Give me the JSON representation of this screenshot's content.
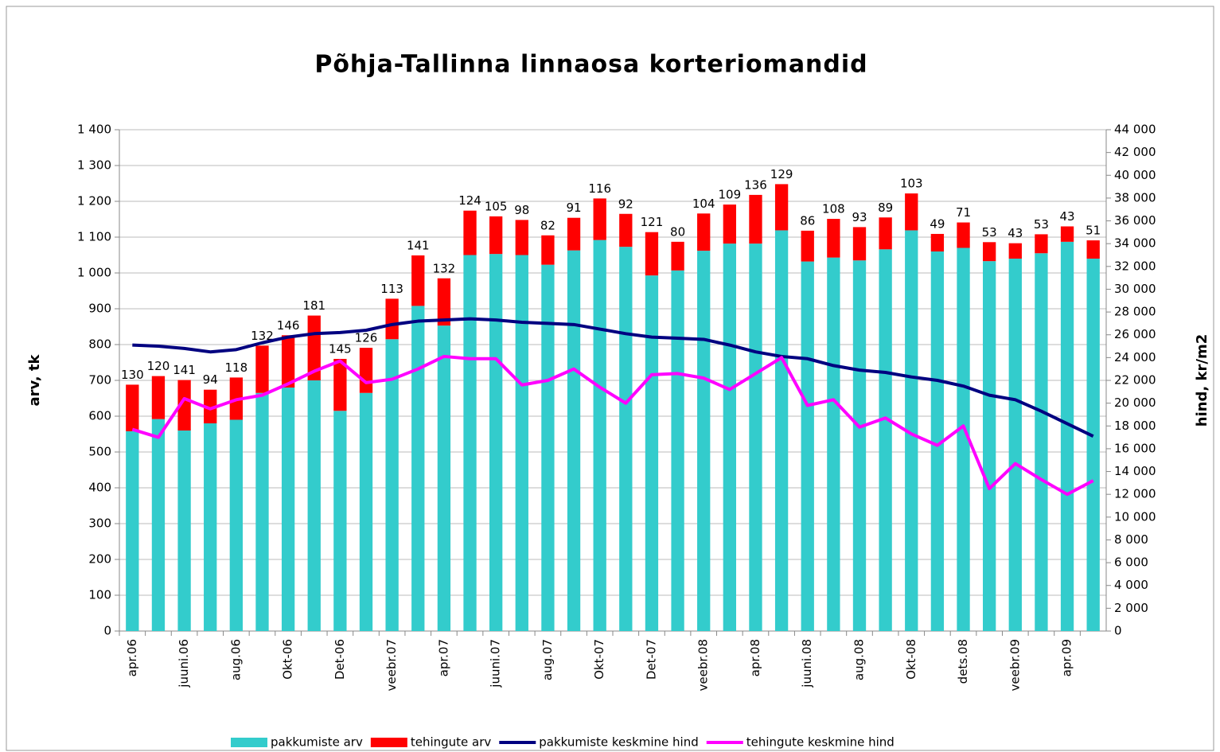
{
  "chart_data": {
    "type": "bar",
    "stacked": true,
    "title": "Põhja-Tallinna linnaosa korteriomandid",
    "ylabel": "arv, tk",
    "y2label": "hind, kr/m2",
    "categories": [
      "apr.06",
      null,
      "juuni.06",
      null,
      "aug.06",
      null,
      "Okt-06",
      null,
      "Det-06",
      null,
      "veebr.07",
      null,
      "apr.07",
      null,
      "juuni.07",
      null,
      "aug.07",
      null,
      "Okt-07",
      null,
      "Det-07",
      null,
      "veebr.08",
      null,
      "apr.08",
      null,
      "juuni.08",
      null,
      "aug.08",
      null,
      "Okt-08",
      null,
      "dets.08",
      null,
      "veebr.09",
      null,
      "apr.09",
      null
    ],
    "series": [
      {
        "name": "pakkumiste arv",
        "type": "bar",
        "color": "#33cccc",
        "values": [
          558,
          592,
          560,
          580,
          590,
          665,
          680,
          700,
          615,
          665,
          815,
          908,
          853,
          1050,
          1053,
          1050,
          1023,
          1063,
          1092,
          1073,
          993,
          1007,
          1062,
          1082,
          1082,
          1119,
          1032,
          1043,
          1035,
          1066,
          1119,
          1060,
          1070,
          1033,
          1040,
          1055,
          1087,
          1040
        ]
      },
      {
        "name": "tehingute arv",
        "type": "bar",
        "color": "#ff0000",
        "labels": true,
        "values": [
          130,
          120,
          141,
          94,
          118,
          132,
          146,
          181,
          145,
          126,
          113,
          141,
          132,
          124,
          105,
          98,
          82,
          91,
          116,
          92,
          121,
          80,
          104,
          109,
          136,
          129,
          86,
          108,
          93,
          89,
          103,
          49,
          71,
          53,
          43,
          53,
          43,
          51
        ]
      },
      {
        "name": "pakkumiste keskmine hind",
        "type": "line",
        "axis": "y2",
        "color": "#000080",
        "values": [
          25100,
          25000,
          24800,
          24500,
          24700,
          25300,
          25800,
          26100,
          26200,
          26400,
          26900,
          27200,
          27300,
          27400,
          27300,
          27100,
          27000,
          26900,
          26500,
          26100,
          25800,
          25700,
          25600,
          25100,
          24500,
          24100,
          23900,
          23300,
          22900,
          22700,
          22300,
          22000,
          21500,
          20700,
          20300,
          19300,
          18200,
          17100
        ]
      },
      {
        "name": "tehingute keskmine hind",
        "type": "line",
        "axis": "y2",
        "color": "#ff00ff",
        "values": [
          17700,
          17000,
          20400,
          19500,
          20300,
          20700,
          21700,
          22800,
          23700,
          21800,
          22100,
          23000,
          24100,
          23900,
          23900,
          21600,
          22000,
          23000,
          21400,
          20000,
          22500,
          22600,
          22200,
          21200,
          22600,
          24000,
          19800,
          20300,
          17900,
          18700,
          17300,
          16300,
          18000,
          12500,
          14700,
          13300,
          12000,
          13200
        ]
      }
    ],
    "ylim": [
      0,
      1400
    ],
    "yticks": [
      0,
      100,
      200,
      300,
      400,
      500,
      600,
      700,
      800,
      900,
      {
        "value": 1000,
        "label": "1 000"
      },
      {
        "value": 1100,
        "label": "1 100"
      },
      {
        "value": 1200,
        "label": "1 200"
      },
      {
        "value": 1300,
        "label": "1 300"
      },
      {
        "value": 1400,
        "label": "1 400"
      }
    ],
    "y2lim": [
      0,
      44000
    ],
    "y2ticks": [
      0,
      {
        "value": 2000,
        "label": "2 000"
      },
      {
        "value": 4000,
        "label": "4 000"
      },
      {
        "value": 6000,
        "label": "6 000"
      },
      {
        "value": 8000,
        "label": "8 000"
      },
      {
        "value": 10000,
        "label": "10 000"
      },
      {
        "value": 12000,
        "label": "12 000"
      },
      {
        "value": 14000,
        "label": "14 000"
      },
      {
        "value": 16000,
        "label": "16 000"
      },
      {
        "value": 18000,
        "label": "18 000"
      },
      {
        "value": 20000,
        "label": "20 000"
      },
      {
        "value": 22000,
        "label": "22 000"
      },
      {
        "value": 24000,
        "label": "24 000"
      },
      {
        "value": 26000,
        "label": "26 000"
      },
      {
        "value": 28000,
        "label": "28 000"
      },
      {
        "value": 30000,
        "label": "30 000"
      },
      {
        "value": 32000,
        "label": "32 000"
      },
      {
        "value": 34000,
        "label": "34 000"
      },
      {
        "value": 36000,
        "label": "36 000"
      },
      {
        "value": 38000,
        "label": "38 000"
      },
      {
        "value": 40000,
        "label": "40 000"
      },
      {
        "value": 42000,
        "label": "42 000"
      },
      {
        "value": 44000,
        "label": "44 000"
      }
    ],
    "grid": true,
    "legend": "bottom"
  }
}
